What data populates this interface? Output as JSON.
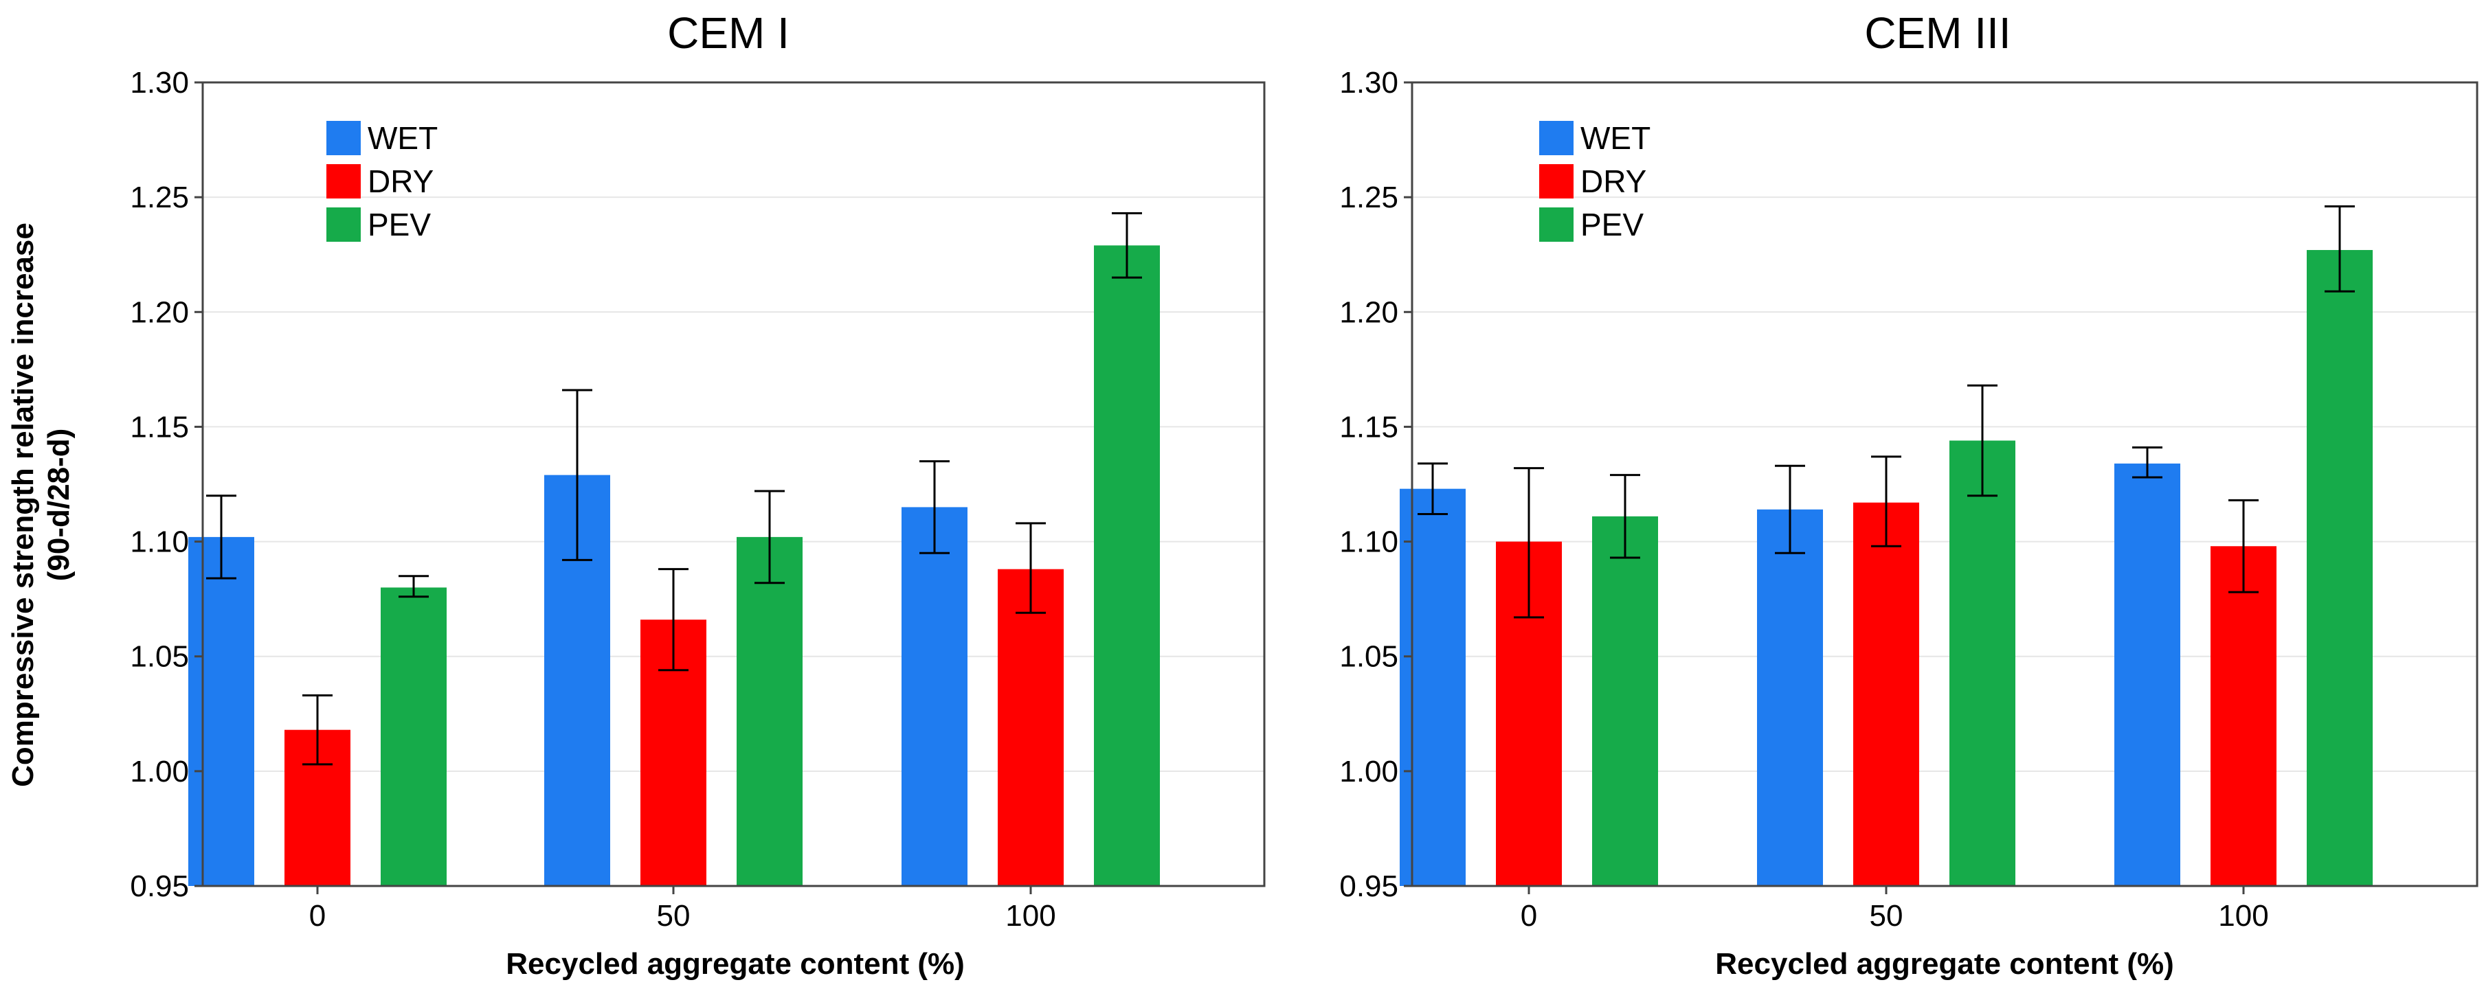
{
  "chart_data": {
    "type": "bar",
    "ylabel_line1": "Compressive strength relative increase",
    "ylabel_line2": "(90-d/28-d)",
    "xlabel": "Recycled aggregate content (%)",
    "categories": [
      "0",
      "50",
      "100"
    ],
    "ylim": [
      0.95,
      1.3
    ],
    "yticks": [
      0.95,
      1.0,
      1.05,
      1.1,
      1.15,
      1.2,
      1.25,
      1.3
    ],
    "ytick_labels": [
      "0.95",
      "1.00",
      "1.05",
      "1.10",
      "1.15",
      "1.20",
      "1.25",
      "1.30"
    ],
    "grid": true,
    "legend_position": "top-left",
    "series_colors": {
      "WET": "#1f7cf0",
      "DRY": "#ff0000",
      "PEV": "#16ab4a"
    },
    "panels": [
      {
        "title": "CEM I",
        "series": [
          {
            "name": "WET",
            "values": [
              1.102,
              1.129,
              1.115
            ],
            "err_low": [
              1.084,
              1.092,
              1.095
            ],
            "err_high": [
              1.12,
              1.166,
              1.135
            ]
          },
          {
            "name": "DRY",
            "values": [
              1.018,
              1.066,
              1.088
            ],
            "err_low": [
              1.003,
              1.044,
              1.069
            ],
            "err_high": [
              1.033,
              1.088,
              1.108
            ]
          },
          {
            "name": "PEV",
            "values": [
              1.08,
              1.102,
              1.229
            ],
            "err_low": [
              1.076,
              1.082,
              1.215
            ],
            "err_high": [
              1.085,
              1.122,
              1.243
            ]
          }
        ]
      },
      {
        "title": "CEM III",
        "series": [
          {
            "name": "WET",
            "values": [
              1.123,
              1.114,
              1.134
            ],
            "err_low": [
              1.112,
              1.095,
              1.128
            ],
            "err_high": [
              1.134,
              1.133,
              1.141
            ]
          },
          {
            "name": "DRY",
            "values": [
              1.1,
              1.117,
              1.098
            ],
            "err_low": [
              1.067,
              1.098,
              1.078
            ],
            "err_high": [
              1.132,
              1.137,
              1.118
            ]
          },
          {
            "name": "PEV",
            "values": [
              1.111,
              1.144,
              1.227
            ],
            "err_low": [
              1.093,
              1.12,
              1.209
            ],
            "err_high": [
              1.129,
              1.168,
              1.246
            ]
          }
        ]
      }
    ]
  }
}
